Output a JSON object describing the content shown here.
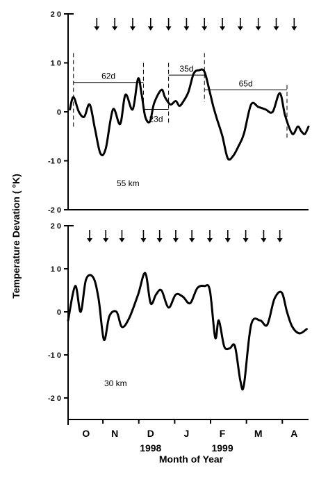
{
  "chart_data": [
    {
      "type": "line",
      "panel_label": "55 km",
      "ylim": [
        -20,
        20
      ],
      "yticks": [
        "2 0",
        "1 0",
        "0",
        "-1 0",
        "-2 0"
      ],
      "yticks_values": [
        20,
        10,
        0,
        -10,
        -20
      ],
      "arrows_x": [
        0.8,
        1.3,
        1.8,
        2.3,
        2.8,
        3.3,
        3.8,
        4.3,
        4.8,
        5.3,
        5.8,
        6.3
      ],
      "x": [
        0.05,
        0.15,
        0.3,
        0.45,
        0.6,
        0.75,
        0.9,
        1.05,
        1.25,
        1.45,
        1.6,
        1.8,
        1.95,
        2.05,
        2.15,
        2.28,
        2.4,
        2.6,
        2.7,
        2.85,
        3.0,
        3.1,
        3.2,
        3.35,
        3.5,
        3.65,
        3.8,
        3.95,
        4.05,
        4.15,
        4.3,
        4.45,
        4.6,
        4.75,
        4.9,
        5.1,
        5.3,
        5.5,
        5.7,
        5.9,
        6.05,
        6.25,
        6.4,
        6.5,
        6.6,
        6.7
      ],
      "y": [
        0.5,
        3.0,
        0.0,
        -1.0,
        1.5,
        -3.5,
        -8.5,
        -7.5,
        0.5,
        -2.5,
        3.5,
        0.5,
        6.8,
        3.5,
        -1.0,
        -2.0,
        1.8,
        4.5,
        3.0,
        1.5,
        2.2,
        1.2,
        2.0,
        4.0,
        7.8,
        8.5,
        8.2,
        4.0,
        1.0,
        -1.5,
        -5.0,
        -9.5,
        -9.0,
        -7.0,
        -4.5,
        1.5,
        1.0,
        0.5,
        0.0,
        3.8,
        -0.8,
        -4.5,
        -3.0,
        -4.0,
        -4.5,
        -3.0
      ],
      "annotations": [
        {
          "text": "62d",
          "x1": 0.15,
          "x2": 2.1,
          "y": 6
        },
        {
          "text": "23d",
          "x1": 2.1,
          "x2": 2.8,
          "y": 0.5
        },
        {
          "text": "35d",
          "x1": 2.8,
          "x2": 3.8,
          "y": 7.5
        },
        {
          "text": "65d",
          "x1": 3.8,
          "x2": 6.1,
          "y": 4.5
        }
      ],
      "vlines": [
        {
          "x": 0.15,
          "y1": -3.5,
          "y2": 12
        },
        {
          "x": 2.1,
          "y1": 1.5,
          "y2": 10
        },
        {
          "x": 2.8,
          "y1": -2.5,
          "y2": 10
        },
        {
          "x": 3.8,
          "y1": 2,
          "y2": 12
        },
        {
          "x": 6.1,
          "y1": -5.5,
          "y2": 5.5
        }
      ]
    },
    {
      "type": "line",
      "panel_label": "30 km",
      "ylim": [
        -25,
        20
      ],
      "yticks": [
        "2 0",
        "1 0",
        "0",
        "-1 0",
        "-2 0"
      ],
      "yticks_values": [
        20,
        10,
        0,
        -10,
        -20
      ],
      "arrows_x": [
        0.6,
        1.05,
        1.5,
        2.1,
        2.55,
        3.0,
        3.45,
        3.95,
        4.45,
        4.95,
        5.45,
        5.9
      ],
      "x": [
        0.0,
        0.2,
        0.35,
        0.5,
        0.7,
        0.85,
        1.0,
        1.15,
        1.35,
        1.5,
        1.7,
        1.95,
        2.15,
        2.3,
        2.45,
        2.6,
        2.8,
        3.0,
        3.2,
        3.4,
        3.6,
        3.8,
        3.95,
        4.1,
        4.2,
        4.35,
        4.5,
        4.65,
        4.8,
        4.9,
        5.1,
        5.35,
        5.55,
        5.75,
        5.95,
        6.1,
        6.25,
        6.45,
        6.65
      ],
      "y": [
        -2.0,
        6.0,
        0.0,
        7.5,
        8.0,
        3.0,
        -6.5,
        -1.0,
        0.0,
        -3.5,
        -1.5,
        4.0,
        9.0,
        2.0,
        4.0,
        5.0,
        1.0,
        4.0,
        3.5,
        2.0,
        5.5,
        6.0,
        5.0,
        -6.0,
        -2.0,
        -8.0,
        -8.5,
        -8.0,
        -16.0,
        -17.0,
        -3.0,
        -2.0,
        -3.0,
        3.0,
        4.5,
        0.0,
        -3.5,
        -5.0,
        -4.0
      ],
      "xticks": [
        "O",
        "N",
        "D",
        "J",
        "F",
        "M",
        "A"
      ],
      "xticks_values": [
        0.5,
        1.3,
        2.3,
        3.3,
        4.3,
        5.3,
        6.3
      ],
      "year_labels": [
        {
          "text": "1998",
          "x": 2.3
        },
        {
          "text": "1999",
          "x": 4.3
        }
      ]
    }
  ],
  "ylabel": "Temperature Devation ( °K)",
  "xlabel": "Month of Year"
}
